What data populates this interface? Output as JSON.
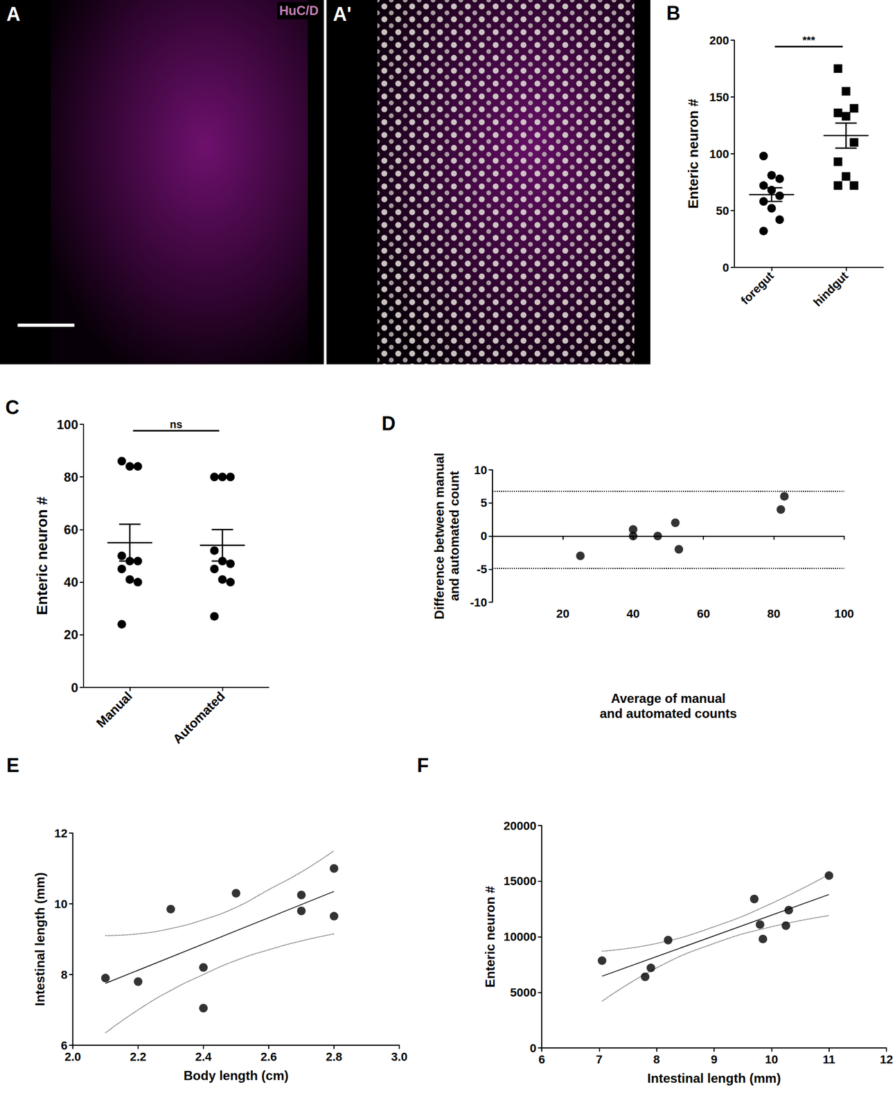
{
  "image_panels": [
    {
      "panel": "A",
      "channel": "HuC/D"
    },
    {
      "panel": "A'"
    }
  ],
  "chart_data": [
    {
      "panel": "B",
      "type": "dot_plot",
      "categories": [
        "foregut",
        "hindgut"
      ],
      "ylabel": "Enteric neuron #",
      "ylim": [
        0,
        200
      ],
      "yticks": [
        0,
        50,
        100,
        150,
        200
      ],
      "significance": "***",
      "grid": false,
      "color": "#000000",
      "groups": [
        {
          "marker": "circle",
          "values": [
            98,
            81,
            78,
            72,
            68,
            63,
            58,
            52,
            42,
            32
          ],
          "mean": 64,
          "sem": 6
        },
        {
          "marker": "square",
          "values": [
            175,
            155,
            140,
            136,
            133,
            110,
            93,
            80,
            72,
            72
          ],
          "mean": 116,
          "sem": 11
        }
      ]
    },
    {
      "panel": "C",
      "type": "dot_plot",
      "categories": [
        "Manual",
        "Automated"
      ],
      "ylabel": "Enteric neuron #",
      "ylim": [
        0,
        100
      ],
      "yticks": [
        0,
        20,
        40,
        60,
        80,
        100
      ],
      "significance": "ns",
      "grid": false,
      "color": "#000000",
      "groups": [
        {
          "marker": "circle",
          "values": [
            86,
            84,
            84,
            50,
            48,
            48,
            45,
            41,
            40,
            24
          ],
          "mean": 55,
          "sem": 7
        },
        {
          "marker": "circle",
          "values": [
            80,
            80,
            80,
            52,
            48,
            47,
            45,
            41,
            40,
            27
          ],
          "mean": 54,
          "sem": 6
        }
      ]
    },
    {
      "panel": "D",
      "type": "scatter",
      "xlabel": "Average of manual\nand automated counts",
      "ylabel": "Difference between manual\nand automated count",
      "x": [
        25,
        40,
        40,
        47,
        52,
        53,
        82,
        83
      ],
      "y": [
        -3,
        1,
        0,
        0,
        2,
        -2,
        4,
        6
      ],
      "xlim": [
        0,
        100
      ],
      "xticks": [
        20,
        40,
        60,
        80,
        100
      ],
      "ylim": [
        -10,
        10
      ],
      "yticks": [
        -10,
        -5,
        0,
        5,
        10
      ],
      "limits": [
        6.8,
        -4.9
      ],
      "grid": false,
      "color": "#000000",
      "marker": "circle"
    },
    {
      "panel": "E",
      "type": "scatter",
      "xlabel": "Body length (cm)",
      "ylabel": "Intestinal length (mm)",
      "x": [
        2.1,
        2.2,
        2.3,
        2.4,
        2.4,
        2.5,
        2.7,
        2.7,
        2.8,
        2.8
      ],
      "y": [
        7.9,
        7.8,
        9.85,
        8.2,
        7.05,
        10.3,
        10.25,
        9.8,
        11.0,
        9.65
      ],
      "xlim": [
        2.0,
        3.0
      ],
      "xticks": [
        {
          "value": 2,
          "label": "2.0"
        },
        {
          "value": 2.2,
          "label": "2.2"
        },
        {
          "value": 2.4,
          "label": "2.4"
        },
        {
          "value": 2.6,
          "label": "2.6"
        },
        {
          "value": 2.8,
          "label": "2.8"
        },
        {
          "value": 3,
          "label": "3.0"
        }
      ],
      "ylim": [
        6,
        12
      ],
      "yticks": [
        6,
        8,
        10,
        12
      ],
      "fit": {
        "x": [
          2.1,
          2.8
        ],
        "y": [
          7.75,
          10.35
        ]
      },
      "ci_upper": {
        "x": [
          2.1,
          2.2,
          2.3,
          2.4,
          2.5,
          2.6,
          2.7,
          2.8
        ],
        "y": [
          9.1,
          9.15,
          9.3,
          9.55,
          9.9,
          10.4,
          10.9,
          11.5
        ]
      },
      "ci_lower": {
        "x": [
          2.1,
          2.2,
          2.3,
          2.4,
          2.5,
          2.6,
          2.7,
          2.8
        ],
        "y": [
          6.35,
          7.0,
          7.55,
          8.0,
          8.4,
          8.7,
          8.95,
          9.15
        ]
      },
      "grid": false,
      "color": "#000000",
      "marker": "circle"
    },
    {
      "panel": "F",
      "type": "scatter",
      "xlabel": "Intestinal length (mm)",
      "ylabel": "Enteric neuron #",
      "x": [
        7.05,
        7.8,
        7.9,
        8.2,
        9.7,
        9.8,
        9.85,
        10.25,
        10.3,
        11.0
      ],
      "y": [
        7850,
        6400,
        7200,
        9700,
        13400,
        11100,
        9800,
        11000,
        12400,
        15500
      ],
      "xlim": [
        6,
        12
      ],
      "xticks": [
        6,
        7,
        8,
        9,
        10,
        11,
        12
      ],
      "ylim": [
        0,
        20000
      ],
      "yticks": [
        0,
        5000,
        10000,
        15000,
        20000
      ],
      "fit": {
        "x": [
          7.05,
          11.0
        ],
        "y": [
          6450,
          13800
        ]
      },
      "ci_upper": {
        "x": [
          7.05,
          8,
          9,
          10,
          11
        ],
        "y": [
          8700,
          9400,
          10900,
          13000,
          15600
        ]
      },
      "ci_lower": {
        "x": [
          7.05,
          8,
          9,
          10,
          11
        ],
        "y": [
          4200,
          7200,
          9400,
          10900,
          11900
        ]
      },
      "grid": false,
      "color": "#000000",
      "marker": "circle"
    }
  ]
}
